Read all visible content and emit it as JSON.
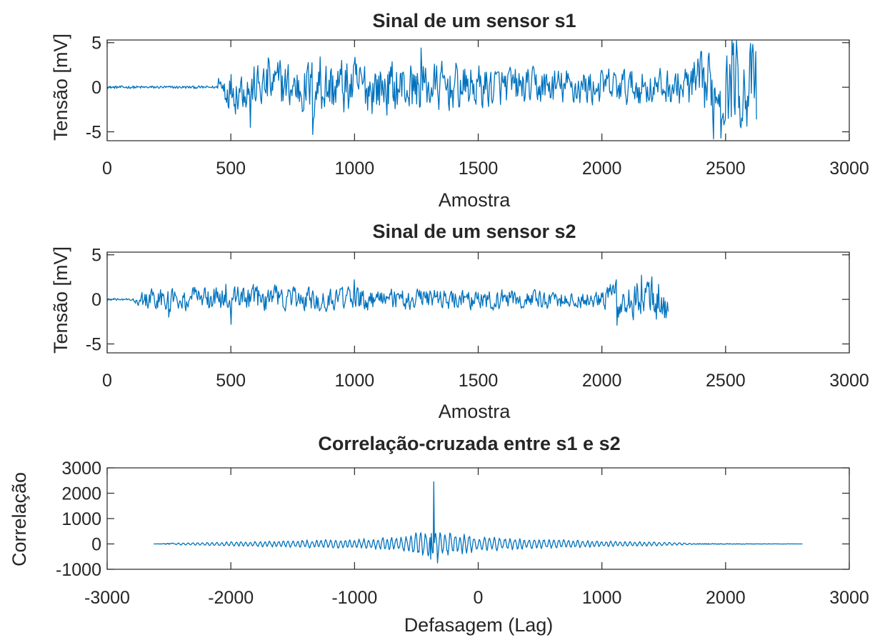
{
  "colors": {
    "series": "#0072BD",
    "axis": "#262626",
    "background": "#ffffff"
  },
  "chart_data": [
    {
      "type": "line",
      "title": "Sinal de um sensor s1",
      "xlabel": "Amostra",
      "ylabel": "Tensão [mV]",
      "xlim": [
        0,
        3000
      ],
      "ylim": [
        -6,
        5.3
      ],
      "xticks": [
        0,
        500,
        1000,
        1500,
        2000,
        2500,
        3000
      ],
      "xtick_labels": [
        "0",
        "500",
        "1000",
        "1500",
        "2000",
        "2500",
        "3000"
      ],
      "yticks": [
        -5,
        0,
        5
      ],
      "ytick_labels": [
        "-5",
        "0",
        "5"
      ],
      "grid": false,
      "series": [
        {
          "x_range": [
            0,
            2625
          ],
          "quiet_until": 450,
          "quiet_amplitude": 0.15,
          "envelope": [
            [
              0,
              0.15
            ],
            [
              450,
              0.15
            ],
            [
              460,
              2.0
            ],
            [
              900,
              3.0
            ],
            [
              1300,
              2.5
            ],
            [
              1700,
              1.9
            ],
            [
              2300,
              1.8
            ],
            [
              2400,
              3.2
            ],
            [
              2625,
              4.5
            ]
          ],
          "keypoints": [
            [
              450,
              1.0
            ],
            [
              520,
              -3.0
            ],
            [
              580,
              -4.5
            ],
            [
              650,
              3.3
            ],
            [
              700,
              3.0
            ],
            [
              830,
              -5.3
            ],
            [
              860,
              3.4
            ],
            [
              1270,
              4.4
            ],
            [
              2450,
              -5.8
            ],
            [
              2480,
              -5.7
            ],
            [
              2525,
              5.3
            ],
            [
              2545,
              5.2
            ],
            [
              2610,
              4.8
            ],
            [
              2625,
              -3.6
            ]
          ]
        }
      ]
    },
    {
      "type": "line",
      "title": "Sinal de um sensor s2",
      "xlabel": "Amostra",
      "ylabel": "Tensão [mV]",
      "xlim": [
        0,
        3000
      ],
      "ylim": [
        -6,
        5.3
      ],
      "xticks": [
        0,
        500,
        1000,
        1500,
        2000,
        2500,
        3000
      ],
      "xtick_labels": [
        "0",
        "500",
        "1000",
        "1500",
        "2000",
        "2500",
        "3000"
      ],
      "yticks": [
        -5,
        0,
        5
      ],
      "ytick_labels": [
        "-5",
        "0",
        "5"
      ],
      "grid": false,
      "series": [
        {
          "x_range": [
            0,
            2270
          ],
          "quiet_until": 100,
          "quiet_amplitude": 0.1,
          "envelope": [
            [
              0,
              0.1
            ],
            [
              100,
              0.15
            ],
            [
              150,
              1.0
            ],
            [
              480,
              1.4
            ],
            [
              900,
              1.2
            ],
            [
              1200,
              1.0
            ],
            [
              2000,
              0.9
            ],
            [
              2050,
              1.8
            ],
            [
              2270,
              2.2
            ]
          ],
          "keypoints": [
            [
              250,
              -2.0
            ],
            [
              480,
              1.7
            ],
            [
              500,
              -2.8
            ],
            [
              1000,
              2.2
            ],
            [
              2060,
              -2.9
            ],
            [
              2160,
              2.7
            ],
            [
              2270,
              -1.7
            ]
          ]
        }
      ]
    },
    {
      "type": "line",
      "title": "Correlação-cruzada entre s1 e s2",
      "xlabel": "Defasagem (Lag)",
      "ylabel": "Correlação",
      "xlim": [
        -3000,
        3000
      ],
      "ylim": [
        -1000,
        3000
      ],
      "xticks": [
        -3000,
        -2000,
        -1000,
        0,
        1000,
        2000,
        3000
      ],
      "xtick_labels": [
        "-3000",
        "-2000",
        "-1000",
        "0",
        "1000",
        "2000",
        "3000"
      ],
      "yticks": [
        -1000,
        0,
        1000,
        2000,
        3000
      ],
      "ytick_labels": [
        "-1000",
        "0",
        "1000",
        "2000",
        "3000"
      ],
      "grid": false,
      "series": [
        {
          "x_range": [
            -2624,
            2624
          ],
          "active_range": [
            -2450,
            1750
          ],
          "peak_lag": -360,
          "peak_value": 2450,
          "min_value": -750,
          "envelope": [
            [
              -2624,
              0
            ],
            [
              -2450,
              40
            ],
            [
              -2000,
              90
            ],
            [
              -1000,
              200
            ],
            [
              -600,
              300
            ],
            [
              -450,
              550
            ],
            [
              -300,
              550
            ],
            [
              0,
              300
            ],
            [
              1000,
              120
            ],
            [
              1500,
              80
            ],
            [
              1750,
              20
            ],
            [
              2624,
              0
            ]
          ]
        }
      ]
    }
  ]
}
